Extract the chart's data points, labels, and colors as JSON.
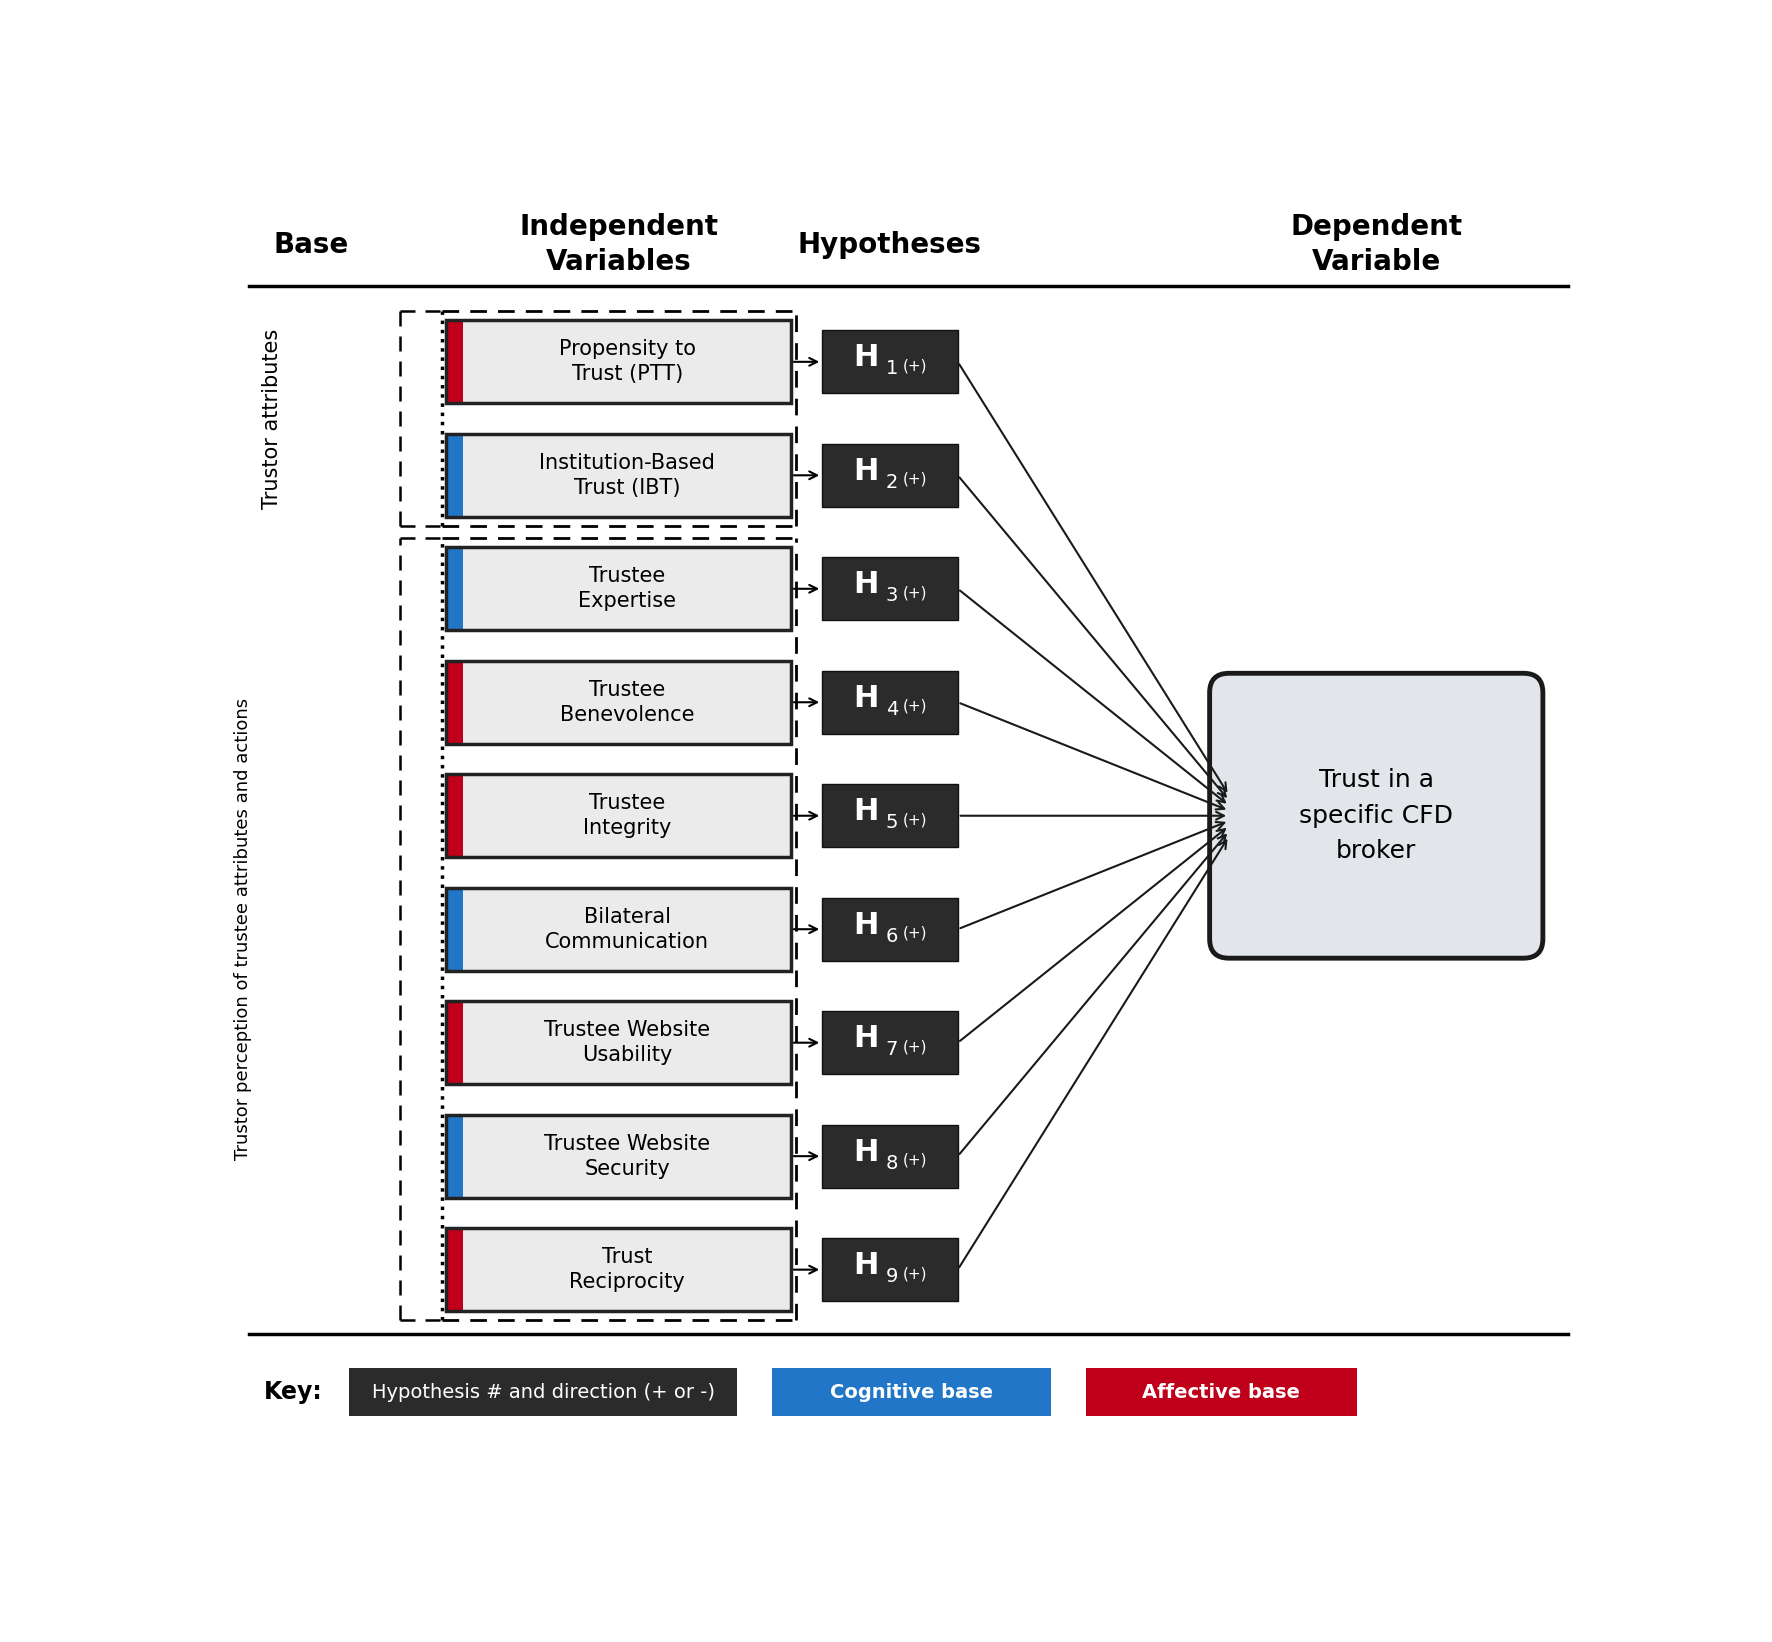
{
  "title_base": "Base",
  "title_iv": "Independent\nVariables",
  "title_hyp": "Hypotheses",
  "title_dv": "Dependent\nVariable",
  "iv_boxes": [
    "Propensity to\nTrust (PTT)",
    "Institution-Based\nTrust (IBT)",
    "Trustee\nExpertise",
    "Trustee\nBenevolence",
    "Trustee\nIntegrity",
    "Bilateral\nCommunication",
    "Trustee Website\nUsability",
    "Trustee Website\nSecurity",
    "Trust\nReciprocity"
  ],
  "hyp_numbers": [
    "1",
    "2",
    "3",
    "4",
    "5",
    "6",
    "7",
    "8",
    "9"
  ],
  "hyp_suffix": "(+)",
  "dv_text": "Trust in a\nspecific CFD\nbroker",
  "color_red": "#C0001A",
  "color_blue": "#2176C8",
  "color_dark": "#2B2B2B",
  "color_box_bg": "#EBEBEB",
  "color_dv_bg": "#D8D8D8",
  "color_white": "#FFFFFF",
  "base_label_top": "Trustor attributes",
  "base_label_bottom": "Trustor perception of trustee attributes and actions",
  "iv_bar_colors": [
    "#C0001A",
    "#2176C8",
    "#2176C8",
    "#C0001A",
    "#C0001A",
    "#2176C8",
    "#C0001A",
    "#2176C8",
    "#C0001A"
  ],
  "key_hyp_text": "Hypothesis # and direction (+ or -)",
  "key_cog_text": "Cognitive base",
  "key_aff_text": "Affective base",
  "fig_w": 17.72,
  "fig_h": 16.42
}
